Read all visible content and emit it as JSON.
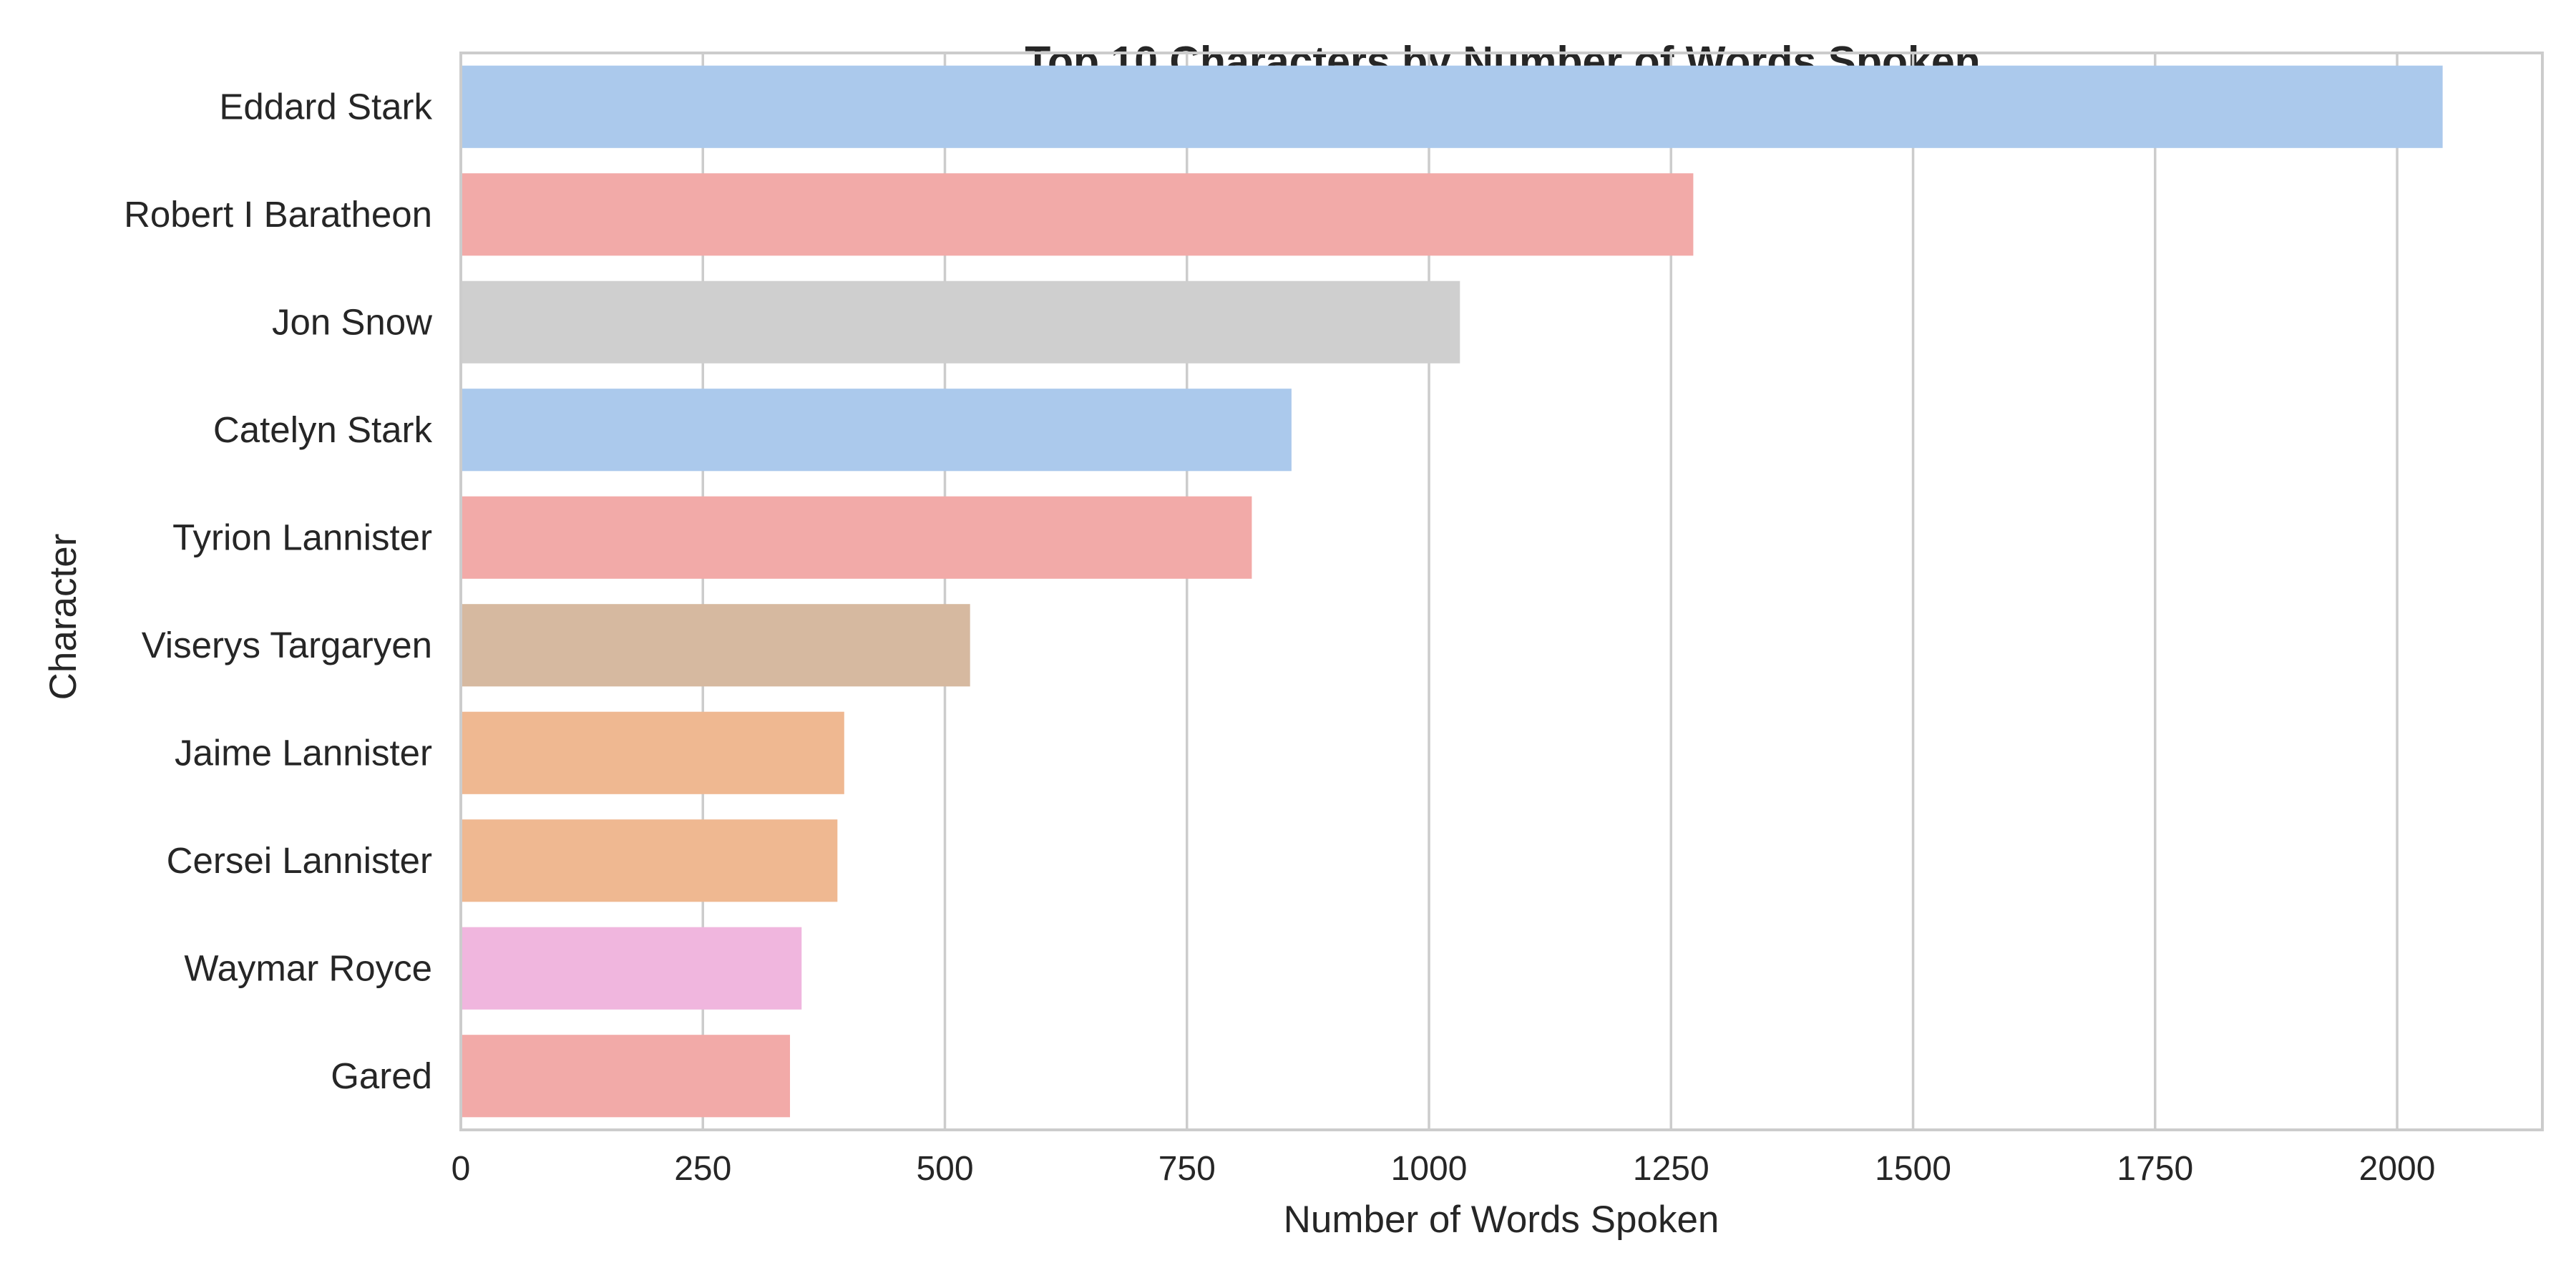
{
  "chart_data": {
    "type": "bar",
    "orientation": "horizontal",
    "title": "Top 10 Characters by Number of Words Spoken",
    "xlabel": "Number of Words Spoken",
    "ylabel": "Character",
    "xlim": [
      0,
      2150
    ],
    "xticks": [
      0,
      250,
      500,
      750,
      1000,
      1250,
      1500,
      1750,
      2000
    ],
    "grid": "vertical",
    "categories": [
      "Eddard Stark",
      "Robert I Baratheon",
      "Jon Snow",
      "Catelyn Stark",
      "Tyrion Lannister",
      "Viserys Targaryen",
      "Jaime Lannister",
      "Cersei Lannister",
      "Waymar Royce",
      "Gared"
    ],
    "values": [
      2047,
      1273,
      1032,
      858,
      817,
      526,
      396,
      389,
      352,
      340
    ],
    "colors": [
      "#abc9ec",
      "#f2aaa8",
      "#cfcfcf",
      "#abc9ec",
      "#f2aaa8",
      "#d6b9a0",
      "#efb891",
      "#efb891",
      "#f0b6de",
      "#f2aaa8"
    ],
    "grid_color": "#cccccc",
    "spine_color": "#cccccc"
  }
}
